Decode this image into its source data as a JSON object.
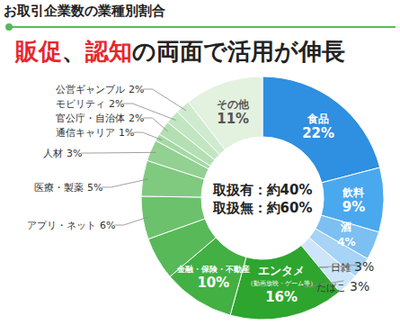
{
  "chart_data": {
    "type": "pie",
    "subtitle": "お取引企業数の業種別割合",
    "title_parts": [
      {
        "text": "販促",
        "color": "#e8262a"
      },
      {
        "text": "、",
        "color": "#222222"
      },
      {
        "text": "認知",
        "color": "#e8262a"
      },
      {
        "text": "の両面で活用が伸長",
        "color": "#222222"
      }
    ],
    "center_text": [
      "取扱有：約40%",
      "取扱無：約60%"
    ],
    "categories": [
      "食品",
      "飲料",
      "酒",
      "日雑",
      "たばこ",
      "エンタメ（動画放映・ゲーム等）",
      "金融・保険・不動産",
      null,
      "アプリ・ネット",
      "医療・製薬",
      "人材",
      "通信キャリア",
      "官公庁・自治体",
      "モビリティ",
      "公営ギャンブル",
      "その他"
    ],
    "values": [
      22,
      9,
      4,
      3,
      3,
      16,
      10,
      6,
      6,
      5,
      3,
      1,
      2,
      2,
      2,
      11
    ],
    "value_labels": [
      "22%",
      "9%",
      "4%",
      "3%",
      "3%",
      "16%",
      "10%",
      null,
      "6%",
      "5%",
      "3%",
      "1%",
      "2%",
      "2%",
      "2%",
      "11%"
    ],
    "colors": [
      "#2f8fe0",
      "#4aa8ee",
      "#7cbff2",
      "#a6d3f6",
      "#cde5fa",
      "#2ea52e",
      "#42b042",
      "#57b957",
      "#6cc26c",
      "#7fca7f",
      "#92d192",
      "#a4d9a4",
      "#b3dfb3",
      "#c2e6c2",
      "#cfebcf",
      "#e3f1df"
    ],
    "data_labels": true
  }
}
